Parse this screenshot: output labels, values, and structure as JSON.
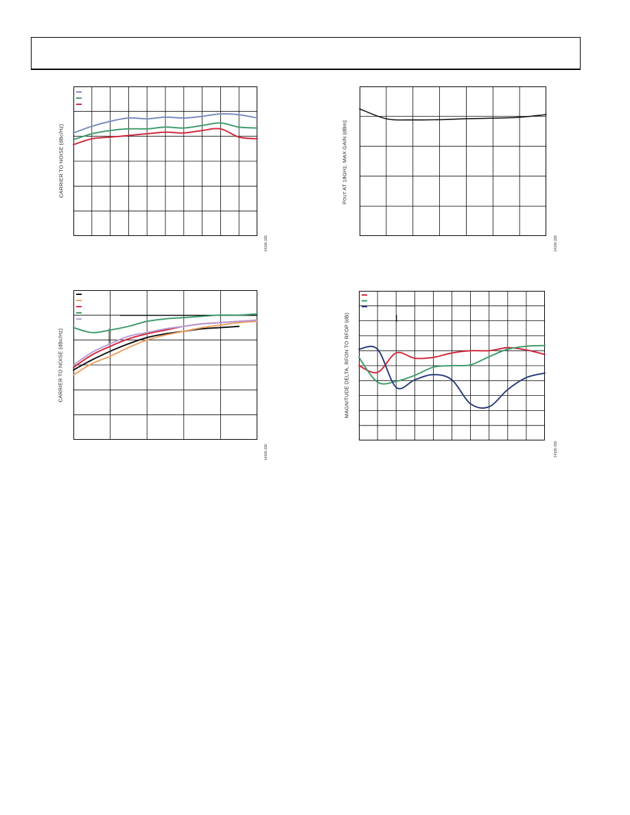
{
  "charts": [
    {
      "id": "chart1",
      "ylabel": "CARRIER TO NOISE (dBc/Hz)",
      "figure_number": "14106-155",
      "legend_colors": [
        "#7a88c0",
        "#3e9b6a",
        "#d0283c"
      ]
    },
    {
      "id": "chart2",
      "ylabel_prefix": "P",
      "ylabel_sub": "OUT",
      "ylabel_rest": " AT 18GHz, MAX GAIN (dBm)",
      "figure_number": "14106-158"
    },
    {
      "id": "chart3",
      "ylabel": "CARRIER TO NOISE (dBc/Hz)",
      "figure_number": "14106-156",
      "legend_colors": [
        "#111111",
        "#f0a060",
        "#d0283c",
        "#3e9b6a",
        "#b79ad6"
      ]
    },
    {
      "id": "chart4",
      "ylabel": "MAGNITUDE DELTA, RFON TO RFOP (dB)",
      "figure_number": "14106-159",
      "legend_colors": [
        "#d0283c",
        "#3e9b6a",
        "#2a3b7a"
      ]
    }
  ],
  "chart_data": [
    {
      "type": "line",
      "title": "",
      "xlabel": "",
      "ylabel": "CARRIER TO NOISE (dBc/Hz)",
      "x": [
        0,
        1,
        2,
        3,
        4,
        5,
        6,
        7,
        8,
        9,
        10
      ],
      "series": [
        {
          "color": "#7a88c0",
          "values": [
            6.2,
            6.6,
            6.9,
            7.1,
            7.05,
            7.15,
            7.1,
            7.2,
            7.35,
            7.3,
            7.1
          ]
        },
        {
          "color": "#3e9b6a",
          "values": [
            5.8,
            6.15,
            6.35,
            6.45,
            6.45,
            6.55,
            6.5,
            6.65,
            6.8,
            6.55,
            6.5
          ]
        },
        {
          "color": "#d0283c",
          "values": [
            5.5,
            5.85,
            5.95,
            6.05,
            6.15,
            6.25,
            6.2,
            6.35,
            6.45,
            5.95,
            5.85
          ]
        }
      ]
    },
    {
      "type": "line",
      "title": "",
      "xlabel": "",
      "ylabel": "POUT AT 18GHz, MAX GAIN (dBm)",
      "x": [
        0,
        1,
        2,
        3,
        4,
        5,
        6,
        7
      ],
      "series": [
        {
          "color": "#111111",
          "values": [
            4.25,
            3.92,
            3.88,
            3.89,
            3.92,
            3.94,
            3.97,
            4.06
          ]
        }
      ]
    },
    {
      "type": "line",
      "title": "",
      "xlabel": "",
      "ylabel": "CARRIER TO NOISE (dBc/Hz)",
      "x": [
        0,
        0.5,
        1,
        1.5,
        2,
        2.5,
        3,
        3.5,
        4,
        4.5,
        5
      ],
      "series": [
        {
          "color": "#111111",
          "values": [
            2.8,
            3.2,
            3.55,
            3.85,
            4.1,
            4.25,
            4.35,
            4.45,
            4.5,
            4.55,
            null
          ]
        },
        {
          "color": "#f0a060",
          "values": [
            2.6,
            3.05,
            3.35,
            3.7,
            4.0,
            4.2,
            4.35,
            4.5,
            4.6,
            4.7,
            4.75
          ]
        },
        {
          "color": "#d0283c",
          "values": [
            2.9,
            3.4,
            3.75,
            4.05,
            4.25,
            4.4,
            4.55,
            4.65,
            4.7,
            4.75,
            4.8
          ]
        },
        {
          "color": "#3e9b6a",
          "values": [
            4.5,
            4.3,
            4.4,
            4.55,
            4.75,
            4.85,
            4.9,
            4.95,
            5.0,
            5.0,
            5.05
          ]
        },
        {
          "color": "#b79ad6",
          "values": [
            3.0,
            3.5,
            3.85,
            4.15,
            4.3,
            4.45,
            4.55,
            4.65,
            4.7,
            4.75,
            4.8
          ]
        }
      ]
    },
    {
      "type": "line",
      "title": "",
      "xlabel": "",
      "ylabel": "MAGNITUDE DELTA, RFON TO RFOP (dB)",
      "x": [
        0,
        1,
        2,
        3,
        4,
        5,
        6,
        7,
        8,
        9,
        10
      ],
      "series": [
        {
          "color": "#d0283c",
          "values": [
            5.0,
            4.55,
            5.85,
            5.5,
            5.55,
            5.85,
            6.0,
            6.0,
            6.2,
            6.05,
            5.75
          ]
        },
        {
          "color": "#3e9b6a",
          "values": [
            5.55,
            3.9,
            3.95,
            4.35,
            4.9,
            5.0,
            5.05,
            5.6,
            6.1,
            6.3,
            6.35
          ]
        },
        {
          "color": "#2a3b7a",
          "values": [
            6.1,
            6.1,
            3.55,
            4.05,
            4.4,
            4.05,
            2.45,
            2.25,
            3.4,
            4.2,
            4.5
          ]
        }
      ]
    }
  ]
}
